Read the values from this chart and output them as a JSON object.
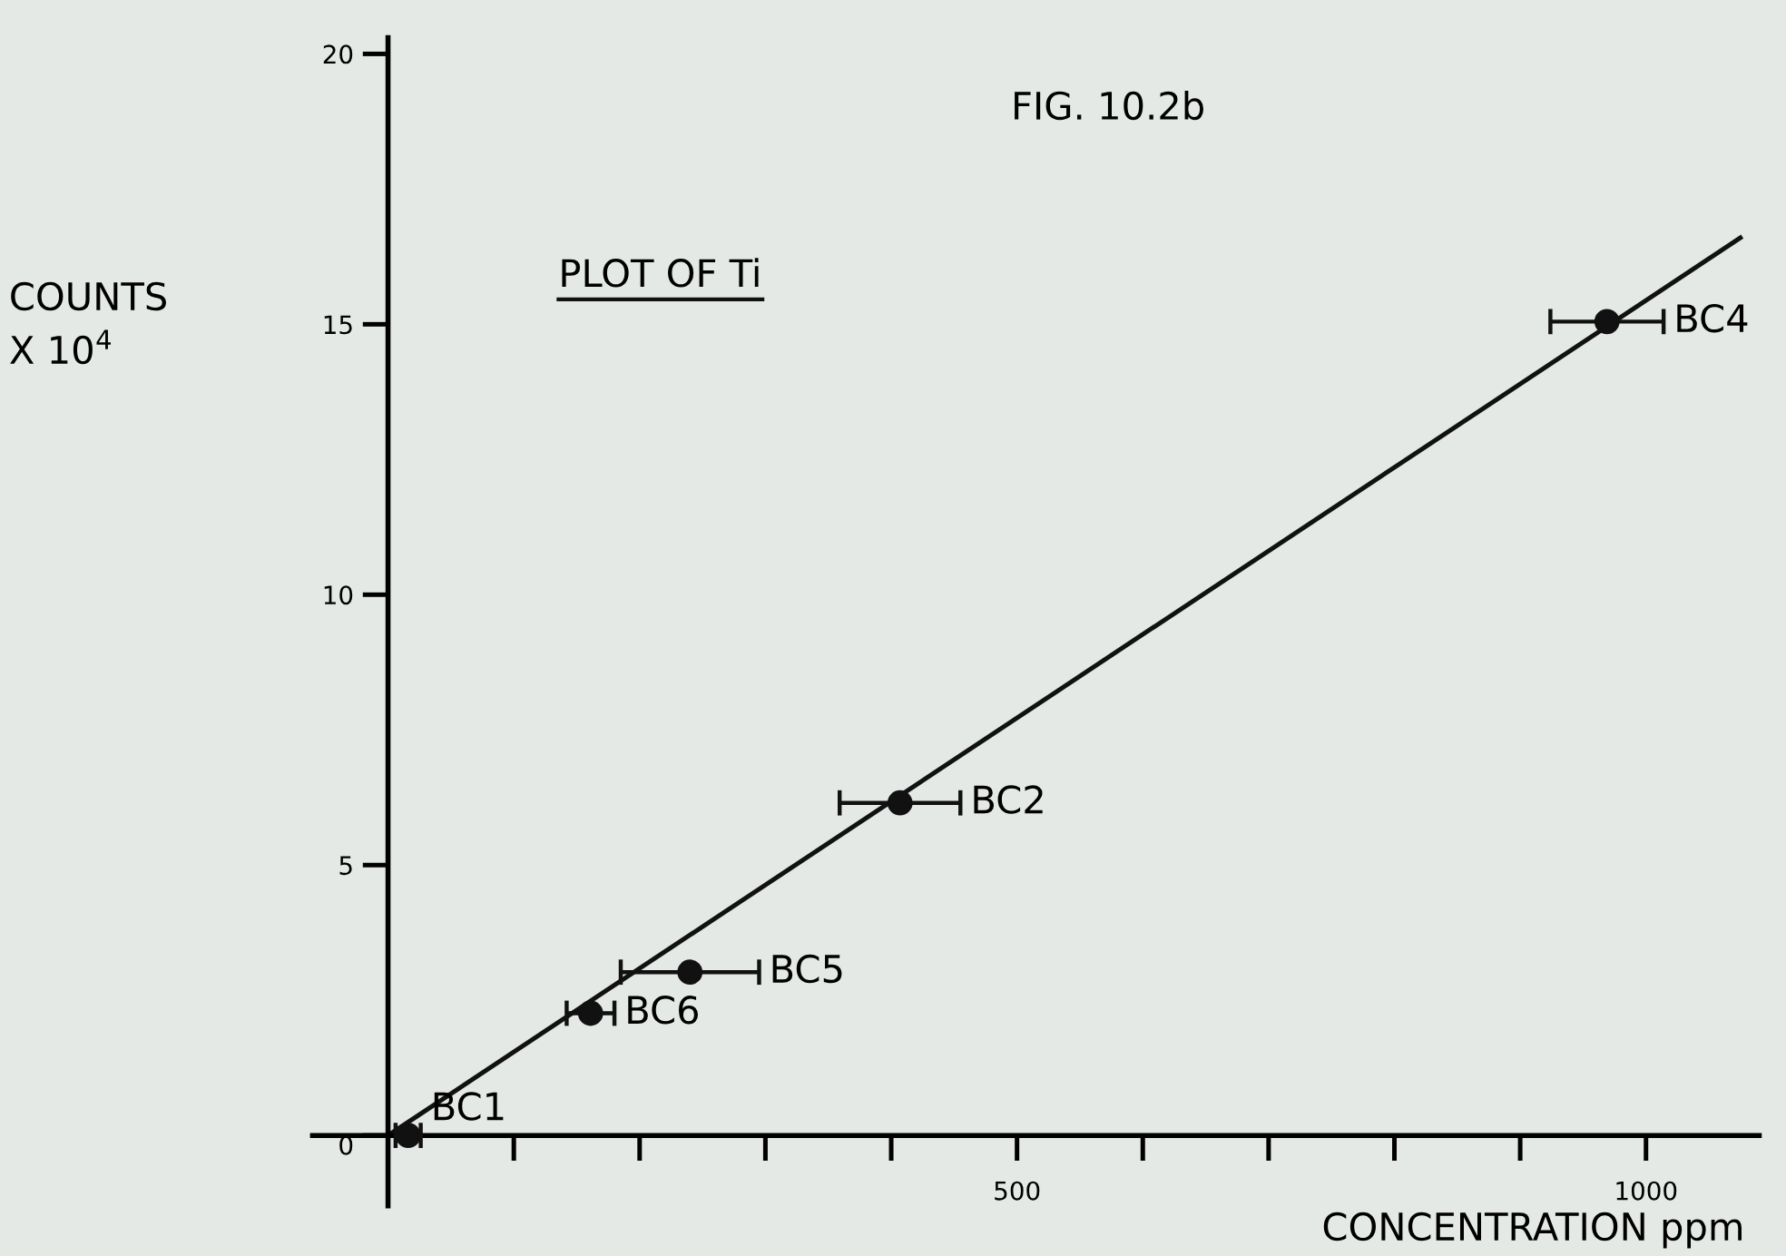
{
  "chart_data": {
    "type": "scatter",
    "title": "FIG. 10.2b",
    "xlabel": "CONCENTRATION ppm",
    "ylabel": "COUNTS\nX 10$^{4}$",
    "xlim": [
      -60,
      1090
    ],
    "ylim": [
      -1.3,
      20.3
    ],
    "xticks": [
      {
        "value": 100,
        "label": null
      },
      {
        "value": 200,
        "label": null
      },
      {
        "value": 300,
        "label": null
      },
      {
        "value": 400,
        "label": null
      },
      500,
      {
        "value": 600,
        "label": null
      },
      {
        "value": 700,
        "label": null
      },
      {
        "value": 800,
        "label": null
      },
      {
        "value": 900,
        "label": null
      },
      1000
    ],
    "yticks": [
      0,
      5,
      10,
      15,
      20
    ],
    "grid": false,
    "marker": "circle",
    "series": [
      {
        "type": "scatter",
        "color": "#111111",
        "x": [
          16,
          161,
          240,
          407,
          969
        ],
        "values": [
          0,
          2.26,
          3.02,
          6.15,
          15.05
        ],
        "xerrors": [
          10,
          19,
          55,
          48,
          45
        ]
      },
      {
        "type": "line",
        "color": "#111111",
        "line_style": "solid",
        "marker": "none",
        "x": [
          0,
          1075
        ],
        "values": [
          0,
          16.6
        ]
      }
    ],
    "annotations": [
      {
        "text": "BC1",
        "x": 16,
        "y": 0
      },
      {
        "text": "BC6",
        "x": 161,
        "y": 2.26
      },
      {
        "text": "BC5",
        "x": 240,
        "y": 3.02
      },
      {
        "text": "BC2",
        "x": 407,
        "y": 6.15
      },
      {
        "text": "BC4",
        "x": 969,
        "y": 15.05
      },
      "PLOT OF Ti"
    ]
  }
}
